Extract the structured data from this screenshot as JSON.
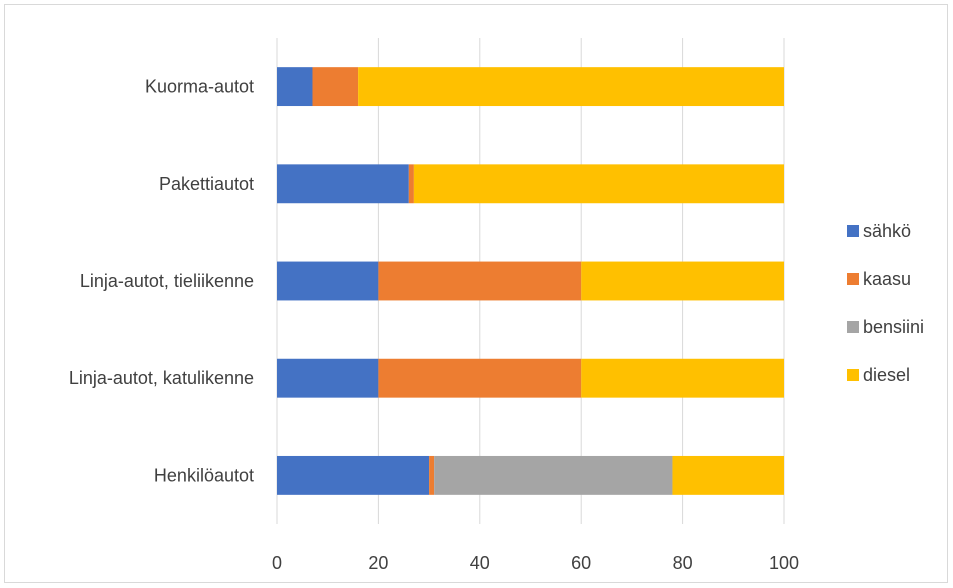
{
  "chart_data": {
    "type": "bar",
    "orientation": "horizontal",
    "stacked": true,
    "categories": [
      "Henkilöautot",
      "Linja-autot, katulikenne",
      "Linja-autot, tieliikenne",
      "Pakettiautot",
      "Kuorma-autot"
    ],
    "series": [
      {
        "name": "sähkö",
        "color": "#4472C4",
        "values": [
          30,
          20,
          20,
          26,
          7
        ]
      },
      {
        "name": "kaasu",
        "color": "#ED7D31",
        "values": [
          1,
          40,
          40,
          1,
          9
        ]
      },
      {
        "name": "bensiini",
        "color": "#A5A5A5",
        "values": [
          47,
          0,
          0,
          0,
          0
        ]
      },
      {
        "name": "diesel",
        "color": "#FFC000",
        "values": [
          22,
          40,
          40,
          73,
          84
        ]
      }
    ],
    "xlim": [
      0,
      100
    ],
    "xticks": [
      "0",
      "20",
      "40",
      "60",
      "80",
      "100"
    ],
    "grid": true,
    "legend": "right"
  }
}
